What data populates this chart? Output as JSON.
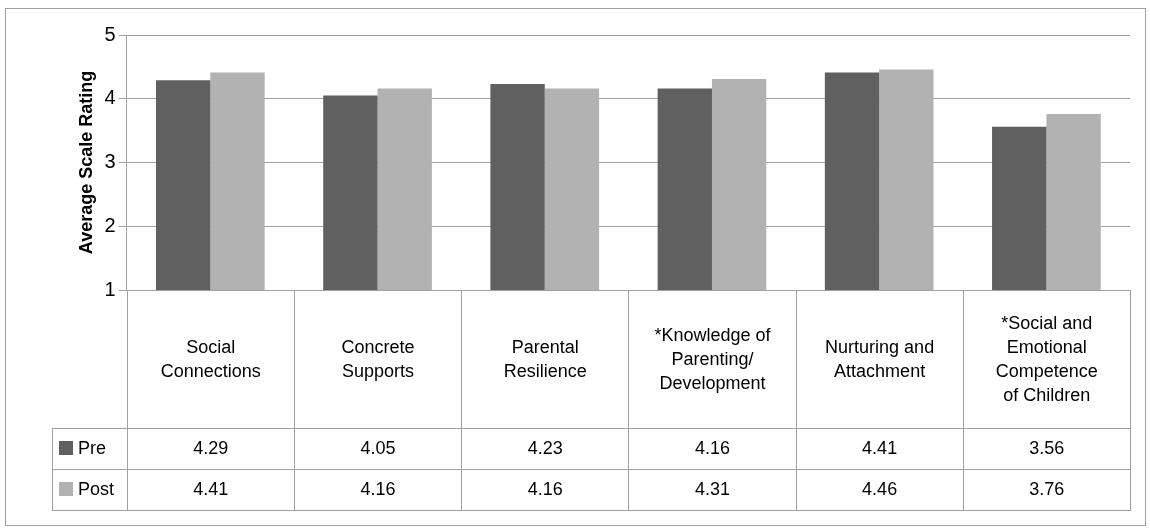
{
  "chart_data": {
    "type": "bar",
    "ylabel": "Average Scale Rating",
    "categories": [
      "Social Connections",
      "Concrete Supports",
      "Parental Resilience",
      "*Knowledge of Parenting/ Development",
      "Nurturing and Attachment",
      "*Social and Emotional Competence of Children"
    ],
    "series": [
      {
        "name": "Pre",
        "color": "#606060",
        "values": [
          4.29,
          4.05,
          4.23,
          4.16,
          4.41,
          3.56
        ]
      },
      {
        "name": "Post",
        "color": "#b2b2b2",
        "values": [
          4.41,
          4.16,
          4.16,
          4.31,
          4.46,
          3.76
        ]
      }
    ],
    "ylim": [
      1,
      5
    ],
    "yticks": [
      1,
      2,
      3,
      4,
      5
    ],
    "grid": "y",
    "legend": "bottom left",
    "data_labels": true
  }
}
